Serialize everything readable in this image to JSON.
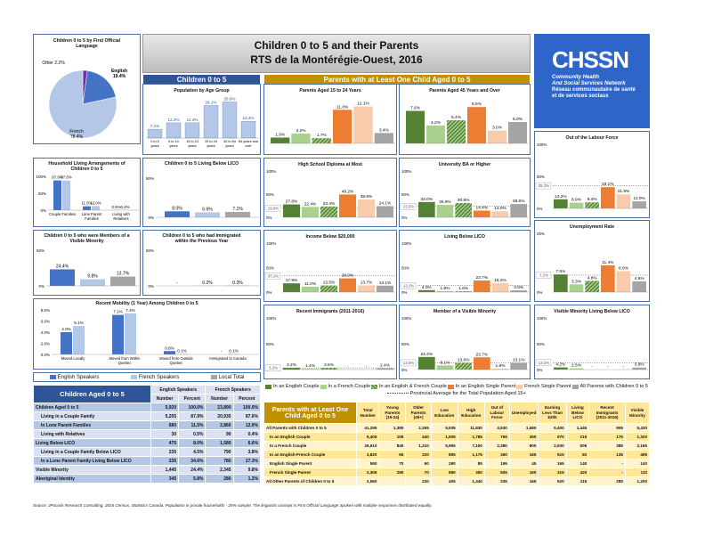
{
  "title_en": "Children 0 to 5 and their Parents",
  "title_fr": "RTS de la Montérégie-Ouest, 2016",
  "logo": {
    "name": "CHSSN",
    "line1": "Community Health",
    "line2": "And Social Services Network",
    "line3": "Réseau communautaire de santé",
    "line4": "et de services sociaux"
  },
  "hdr_left": "Children 0 to 5",
  "hdr_right": "Parents with at Least One Child Aged 0 to 5",
  "colors": {
    "blue_dark": "#4472c4",
    "blue_light": "#b4c7e7",
    "grey": "#a5a5a5",
    "green": "#548235",
    "green_light": "#a9d18e",
    "orange": "#ed7d31",
    "orange_light": "#f8cbad",
    "gold": "#c09000",
    "navy": "#2f5597"
  },
  "pie": {
    "title1": "Children 0 to 5 by First Official",
    "title2": "Language",
    "slices": [
      {
        "name": "English",
        "value": 19.4,
        "label": "19.4%"
      },
      {
        "name": "French",
        "value": 78.4,
        "label": "78.4%"
      },
      {
        "name": "Other",
        "value": 2.2,
        "label": "2.2%"
      }
    ]
  },
  "age": {
    "title": "Population by Age Group",
    "categories": [
      "0 to 5 years",
      "6 to 14 years",
      "15 to 24 years",
      "25 to 44 years",
      "45 to 64 years",
      "65 years and over"
    ],
    "values": [
      7.1,
      12.2,
      12.3,
      26.1,
      28.9,
      13.4
    ],
    "labels": [
      "7.1%",
      "12.2%",
      "12.3%",
      "26.1%",
      "28.9%",
      "13.4%"
    ]
  },
  "living": {
    "title1": "Household Living Arrangements of",
    "title2": "Children 0 to 5",
    "categories": [
      "Couple Families",
      "Lone Parent Families",
      "Living with Relatives"
    ],
    "series": [
      {
        "name": "English Speakers",
        "values": [
          87.9,
          11.5,
          0.5
        ],
        "labels": [
          "87.9%",
          "11.5%",
          "0.5%"
        ]
      },
      {
        "name": "French Speakers",
        "values": [
          87.6,
          12.0,
          0.4
        ],
        "labels": [
          "87.6%",
          "12.0%",
          "0.4%"
        ]
      }
    ]
  },
  "lico": {
    "title": "Children 0 to 5 Living Below LICO",
    "values": [
      8.0,
      6.6,
      7.1
    ],
    "labels": [
      "8.0%",
      "6.6%",
      "7.1%"
    ]
  },
  "vismin": {
    "title1": "Children 0 to 5 who were Members of a",
    "title2": "Visible Minority",
    "values": [
      24.4,
      9.8,
      13.7
    ],
    "labels": [
      "24.4%",
      "9.8%",
      "13.7%"
    ]
  },
  "immig": {
    "title1": "Children 0 to 5 who had Immigrated",
    "title2": "within the Previous Year",
    "values": [
      0,
      0.2,
      0.3
    ],
    "labels": [
      "-",
      "0.2%",
      "0.3%"
    ]
  },
  "mobility": {
    "title": "Recent Mobility (1 Year) Among Children 0 to 5",
    "categories": [
      "Moved Locally",
      "Moved from Within Quebec",
      "Moved from Outside Quebec",
      "Immigrated to Canada"
    ],
    "series": [
      {
        "name": "English Speakers",
        "values": [
          4.0,
          7.1,
          0.6,
          0
        ],
        "labels": [
          "4.0%",
          "7.1%",
          "0.6%",
          "-"
        ]
      },
      {
        "name": "French Speakers",
        "values": [
          5.1,
          7.4,
          0.1,
          0.1
        ],
        "labels": [
          "5.1%",
          "7.4%",
          "0.1%",
          "0.1%"
        ]
      }
    ],
    "yticks": [
      "0.0%",
      "2.0%",
      "4.0%",
      "6.0%",
      "8.0%"
    ]
  },
  "left_legend": [
    "English Speakers",
    "French Speakers",
    "Local Total"
  ],
  "parents_15_24": {
    "title": "Parents Aged 15 to 24 Years",
    "labels": [
      "1.9%",
      "3.2%",
      "1.7%",
      "11.0%",
      "12.1%",
      "3.4%"
    ],
    "values": [
      1.9,
      3.2,
      1.7,
      11.0,
      12.1,
      3.4
    ]
  },
  "parents_45": {
    "title": "Parents Aged 45 Years and Over",
    "labels": [
      "7.6%",
      "4.2%",
      "5.4%",
      "8.5%",
      "3.0%",
      "5.0%"
    ],
    "values": [
      7.6,
      4.2,
      5.4,
      8.5,
      3.0,
      5.0
    ]
  },
  "pgrid": [
    {
      "title": "High School Diploma at Most",
      "labels": [
        "27.8%",
        "22.4%",
        "23.4%",
        "49.2%",
        "38.6%",
        "24.1%"
      ],
      "values": [
        27.8,
        22.4,
        23.4,
        49.2,
        38.6,
        24.1
      ],
      "prov": "19.9%",
      "provv": 19.9,
      "top": "100%",
      "mid": "50%",
      "bot": "0%",
      "ymax": 100
    },
    {
      "title": "University BA or Higher",
      "labels": [
        "33.0%",
        "26.9%",
        "30.8%",
        "14.4%",
        "13.0%",
        "28.6%"
      ],
      "values": [
        33.0,
        26.9,
        30.8,
        14.4,
        13.0,
        28.6
      ],
      "prov": "23.5%",
      "provv": 23.5,
      "top": "100%",
      "mid": "50%",
      "bot": "0%",
      "ymax": 100
    },
    {
      "title": "Out of the Labour Force",
      "labels": [
        "14.2%",
        "8.9%",
        "9.4%",
        "33.1%",
        "21.9%",
        "11.0%"
      ],
      "values": [
        14.2,
        8.9,
        9.4,
        33.1,
        21.9,
        11.0
      ],
      "prov": "35.3%",
      "provv": 35.3,
      "top": "100%",
      "mid": "50%",
      "bot": "0%",
      "ymax": 100
    },
    {
      "title": "Income Below $20,000",
      "labels": [
        "17.9%",
        "11.0%",
        "13.5%",
        "28.0%",
        "13.7%",
        "13.1%"
      ],
      "values": [
        17.9,
        11.0,
        13.5,
        28.0,
        13.7,
        13.1
      ],
      "prov": "33.1%",
      "provv": 33.1,
      "top": "100%",
      "mid": "50%",
      "bot": "0%",
      "ymax": 100
    },
    {
      "title": "Living Below LICO",
      "labels": [
        "4.0%",
        "1.9%",
        "1.6%",
        "23.7%",
        "18.2%",
        "3.5%"
      ],
      "values": [
        4.0,
        1.9,
        1.6,
        23.7,
        18.2,
        3.5
      ],
      "prov": "13.2%",
      "provv": 13.2,
      "top": "100%",
      "mid": "50%",
      "bot": "0%",
      "ymax": 100
    },
    {
      "title": "Unemployment Rate",
      "labels": [
        "7.5%",
        "3.3%",
        "4.8%",
        "11.4%",
        "8.9%",
        "4.6%"
      ],
      "values": [
        7.5,
        3.3,
        4.8,
        11.4,
        8.9,
        4.6
      ],
      "prov": "7.2%",
      "provv": 7.2,
      "top": "25%",
      "mid": "",
      "bot": "0%",
      "ymax": 25
    },
    {
      "title": "Recent Immigrants (2011-2016)",
      "labels": [
        "3.2%",
        "1.4%",
        "3.5%",
        "-",
        "-",
        "2.4%"
      ],
      "values": [
        3.2,
        1.4,
        3.5,
        0,
        0,
        2.4
      ],
      "prov": "3.2%",
      "provv": 3.2,
      "top": "100%",
      "mid": "50%",
      "bot": "0%",
      "ymax": 100
    },
    {
      "title": "Member of a Visible Minority",
      "labels": [
        "24.4%",
        "8.1%",
        "13.0%",
        "23.7%",
        "1.8%",
        "13.1%"
      ],
      "values": [
        24.4,
        8.1,
        13.0,
        23.7,
        1.8,
        13.1
      ],
      "prov": "13.0%",
      "provv": 13.0,
      "top": "100%",
      "mid": "50%",
      "bot": "0%",
      "ymax": 100
    },
    {
      "title": "Visible Minority Living Below LICO",
      "labels": [
        "4.2%",
        "2.5%",
        "-",
        "-",
        "-",
        "3.9%"
      ],
      "values": [
        4.2,
        2.5,
        0,
        0,
        0,
        3.9
      ],
      "prov": "13.2%",
      "provv": 13.2,
      "top": "100%",
      "mid": "50%",
      "bot": "0%",
      "ymax": 100
    }
  ],
  "right_legend": [
    "In an English Couple",
    "In a French Couple",
    "In an English & French Couple",
    "In an English Single Parent",
    "French Single Parent",
    "All Parents with Children 0 to 5"
  ],
  "prov_legend": "Provincial Average for the Total Population Aged 15+",
  "left_table": {
    "title": "Children Aged 0 to 5",
    "groups": [
      "English Speakers",
      "French Speakers"
    ],
    "cols": [
      "Number",
      "Percent",
      "Number",
      "Percent"
    ],
    "rows": [
      [
        "Children Aged 0 to 5",
        "5,920",
        "100.0%",
        "23,890",
        "100.0%"
      ],
      [
        "Living in a Couple Family",
        "5,205",
        "87.9%",
        "20,935",
        "87.6%"
      ],
      [
        "In Lone Parent Families",
        "680",
        "11.5%",
        "2,860",
        "12.0%"
      ],
      [
        "Living with Relatives",
        "30",
        "0.5%",
        "90",
        "0.4%"
      ],
      [
        "Living Below LICO",
        "475",
        "8.0%",
        "1,580",
        "6.6%"
      ],
      [
        "Living in a Couple Family Below LICO",
        "235",
        "4.5%",
        "790",
        "3.8%"
      ],
      [
        "In a Lone Parent Family Living Below LICO",
        "235",
        "34.6%",
        "780",
        "27.3%"
      ],
      [
        "Visible Minority",
        "1,445",
        "24.4%",
        "2,345",
        "9.8%"
      ],
      [
        "Aboriginal Identity",
        "345",
        "5.8%",
        "280",
        "1.2%"
      ]
    ]
  },
  "right_table": {
    "title": "Parents with at Least One Child Aged 0 to 5",
    "cols": [
      "Total Number",
      "Young Parents (15-24)",
      "Older Parents (45+)",
      "Low Education",
      "High Education",
      "Out of Labour Force",
      "Unemployed",
      "Earning Less Than $20k",
      "Living Below LICO",
      "Recent Immigrants (2011-2016)",
      "Visible Minority"
    ],
    "rows": [
      [
        "All Parents with Children 0 to 5",
        "41,295",
        "1,390",
        "2,265",
        "9,935",
        "11,830",
        "4,530",
        "1,680",
        "5,400",
        "1,445",
        "995",
        "5,430"
      ],
      [
        "In an English Couple",
        "5,405",
        "105",
        "440",
        "1,505",
        "1,785",
        "765",
        "350",
        "970",
        "215",
        "175",
        "1,320"
      ],
      [
        "In a French Couple",
        "26,610",
        "845",
        "1,210",
        "5,955",
        "7,150",
        "2,380",
        "800",
        "2,930",
        "505",
        "385",
        "2,165"
      ],
      [
        "In an English-French Couple",
        "3,820",
        "65",
        "220",
        "895",
        "1,175",
        "360",
        "165",
        "515",
        "60",
        "135",
        "495"
      ],
      [
        "English Single Parent",
        "590",
        "70",
        "60",
        "290",
        "85",
        "195",
        "45",
        "165",
        "140",
        "-",
        "140"
      ],
      [
        "French Single Parent",
        "2,305",
        "280",
        "70",
        "890",
        "300",
        "505",
        "160",
        "315",
        "420",
        "-",
        "110"
      ],
      [
        "All Other Parents of Children 0 to 5",
        "2,560",
        "",
        "230",
        "405",
        "1,340",
        "335",
        "165",
        "520",
        "115",
        "280",
        "1,200"
      ]
    ]
  },
  "source": "Source: JPocock Research Consulting, 2016 Census, Statistics Canada. Population in private households - 25% sample. The linguistic concept is First Official Language Spoken with multiple responses distributed equally."
}
